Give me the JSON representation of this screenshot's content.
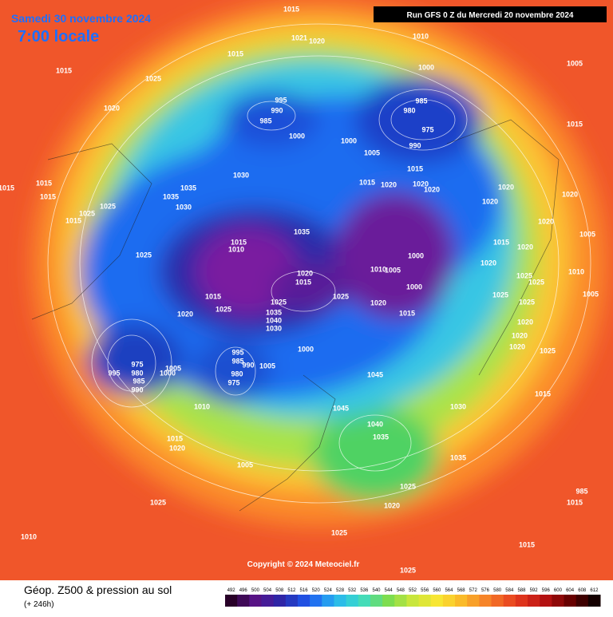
{
  "header": {
    "date": "Samedi 30 novembre 2024",
    "time": "7:00 locale",
    "run": "Run GFS 0 Z du Mercredi 20 novembre 2024"
  },
  "copyright": "Copyright © 2024 Meteociel.fr",
  "footer": {
    "title": "Géop. Z500 & pression au sol",
    "lead": "(+ 246h)"
  },
  "colorbar": {
    "labels": [
      492,
      496,
      500,
      504,
      508,
      512,
      516,
      520,
      524,
      528,
      532,
      536,
      540,
      544,
      548,
      552,
      556,
      560,
      564,
      568,
      572,
      576,
      580,
      584,
      588,
      592,
      596,
      600,
      604,
      608,
      612
    ]
  },
  "isobar_labels": [
    1015,
    1021,
    1020,
    1010,
    1015,
    1000,
    1005,
    1015,
    1025,
    985,
    995,
    990,
    980,
    985,
    975,
    1020,
    1000,
    1000,
    1005,
    990,
    1015,
    1015,
    1030,
    1015,
    1020,
    1020,
    1020,
    1020,
    1020,
    1015,
    1015,
    1015,
    1035,
    1035,
    1030,
    1025,
    1025,
    1015,
    1020,
    1020,
    1005,
    1035,
    1015,
    1010,
    1000,
    1015,
    1020,
    1025,
    1020,
    1010,
    1005,
    1020,
    1015,
    1000,
    1025,
    1025,
    1010,
    1005,
    1015,
    1025,
    1025,
    1020,
    1025,
    1025,
    1025,
    1015,
    1035,
    1040,
    1030,
    1020,
    1020,
    1020,
    1020,
    1025,
    1000,
    975,
    995,
    985,
    990,
    1005,
    1005,
    1000,
    995,
    980,
    985,
    990,
    980,
    975,
    1045,
    1015,
    1010,
    1045,
    1030,
    1040,
    1035,
    1015,
    1020,
    1035,
    1005,
    1025,
    1020,
    985,
    1015,
    1025,
    1025,
    1010,
    1015,
    1025
  ]
}
